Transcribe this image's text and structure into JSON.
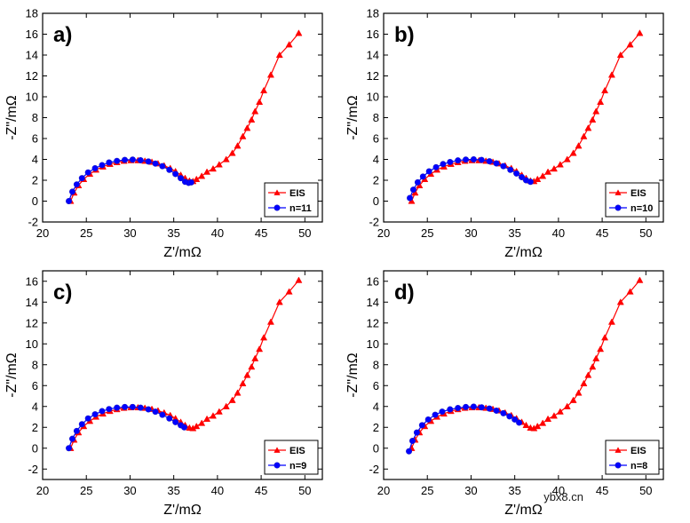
{
  "colors": {
    "eis": "#ff0000",
    "fit": "#0000ff",
    "frame": "#000000"
  },
  "watermark": "ybx8.cn",
  "chart_data": [
    {
      "type": "line",
      "panel_label": "a)",
      "xlabel": "Z'/mΩ",
      "ylabel": "-Z\"/mΩ",
      "xlim": [
        20,
        52
      ],
      "ylim": [
        -2,
        18
      ],
      "xticks": [
        20,
        25,
        30,
        35,
        40,
        45,
        50
      ],
      "yticks": [
        -2,
        0,
        2,
        4,
        6,
        8,
        10,
        12,
        14,
        16,
        18
      ],
      "legend_position": "bottom-right",
      "series": [
        {
          "name": "EIS",
          "marker": "triangle",
          "color": "#ff0000",
          "x": [
            23.2,
            23.6,
            24.1,
            24.7,
            25.4,
            26.1,
            26.9,
            27.7,
            28.5,
            29.3,
            30.1,
            30.9,
            31.7,
            32.5,
            33.2,
            33.9,
            34.6,
            35.2,
            35.8,
            36.3,
            36.8,
            37.2,
            37.6,
            38.2,
            38.8,
            39.5,
            40.2,
            41.0,
            41.7,
            42.3,
            42.9,
            43.4,
            43.9,
            44.3,
            44.8,
            45.3,
            46.1,
            47.1,
            48.2,
            49.3
          ],
          "y": [
            0.0,
            0.8,
            1.5,
            2.1,
            2.6,
            3.0,
            3.3,
            3.55,
            3.72,
            3.85,
            3.9,
            3.9,
            3.85,
            3.75,
            3.6,
            3.4,
            3.15,
            2.85,
            2.5,
            2.2,
            1.95,
            1.9,
            2.1,
            2.4,
            2.8,
            3.1,
            3.5,
            4.0,
            4.6,
            5.3,
            6.2,
            7.0,
            7.8,
            8.6,
            9.5,
            10.6,
            12.1,
            14.0,
            15.0,
            16.1
          ]
        },
        {
          "name": "n=11",
          "marker": "circle",
          "color": "#0000ff",
          "x": [
            23.0,
            23.4,
            23.9,
            24.5,
            25.2,
            26.0,
            26.8,
            27.6,
            28.5,
            29.4,
            30.3,
            31.2,
            32.1,
            32.9,
            33.7,
            34.5,
            35.2,
            35.8,
            36.3,
            36.7,
            37.0
          ],
          "y": [
            0.0,
            0.9,
            1.6,
            2.2,
            2.75,
            3.15,
            3.45,
            3.7,
            3.85,
            3.95,
            3.98,
            3.92,
            3.8,
            3.6,
            3.35,
            3.0,
            2.6,
            2.2,
            1.85,
            1.75,
            1.8
          ]
        }
      ]
    },
    {
      "type": "line",
      "panel_label": "b)",
      "xlabel": "Z'/mΩ",
      "ylabel": "-Z\"/mΩ",
      "xlim": [
        20,
        52
      ],
      "ylim": [
        -2,
        18
      ],
      "xticks": [
        20,
        25,
        30,
        35,
        40,
        45,
        50
      ],
      "yticks": [
        -2,
        0,
        2,
        4,
        6,
        8,
        10,
        12,
        14,
        16,
        18
      ],
      "legend_position": "bottom-right",
      "series": [
        {
          "name": "EIS",
          "marker": "triangle",
          "color": "#ff0000",
          "x": [
            23.2,
            23.6,
            24.1,
            24.7,
            25.4,
            26.1,
            26.9,
            27.7,
            28.5,
            29.3,
            30.1,
            30.9,
            31.7,
            32.5,
            33.2,
            33.9,
            34.6,
            35.2,
            35.8,
            36.3,
            36.8,
            37.2,
            37.6,
            38.2,
            38.8,
            39.5,
            40.2,
            41.0,
            41.7,
            42.3,
            42.9,
            43.4,
            43.9,
            44.3,
            44.8,
            45.3,
            46.1,
            47.1,
            48.2,
            49.3
          ],
          "y": [
            0.0,
            0.8,
            1.5,
            2.1,
            2.6,
            3.0,
            3.3,
            3.55,
            3.72,
            3.85,
            3.9,
            3.9,
            3.85,
            3.75,
            3.6,
            3.4,
            3.15,
            2.85,
            2.5,
            2.2,
            1.95,
            1.9,
            2.1,
            2.4,
            2.8,
            3.1,
            3.5,
            4.0,
            4.6,
            5.3,
            6.2,
            7.0,
            7.8,
            8.6,
            9.5,
            10.6,
            12.1,
            14.0,
            15.0,
            16.1
          ]
        },
        {
          "name": "n=10",
          "marker": "circle",
          "color": "#0000ff",
          "x": [
            23.0,
            23.4,
            23.9,
            24.5,
            25.2,
            26.0,
            26.8,
            27.6,
            28.5,
            29.4,
            30.3,
            31.2,
            32.1,
            32.9,
            33.7,
            34.5,
            35.2,
            35.8,
            36.3,
            36.8
          ],
          "y": [
            0.3,
            1.1,
            1.8,
            2.35,
            2.85,
            3.25,
            3.55,
            3.75,
            3.9,
            3.98,
            4.0,
            3.95,
            3.82,
            3.62,
            3.35,
            3.0,
            2.65,
            2.3,
            2.0,
            1.85
          ]
        }
      ]
    },
    {
      "type": "line",
      "panel_label": "c)",
      "xlabel": "Z'/mΩ",
      "ylabel": "-Z\"/mΩ",
      "xlim": [
        20,
        52
      ],
      "ylim": [
        -3,
        17
      ],
      "xticks": [
        20,
        25,
        30,
        35,
        40,
        45,
        50
      ],
      "yticks": [
        -2,
        0,
        2,
        4,
        6,
        8,
        10,
        12,
        14,
        16
      ],
      "legend_position": "bottom-right",
      "series": [
        {
          "name": "EIS",
          "marker": "triangle",
          "color": "#ff0000",
          "x": [
            23.2,
            23.6,
            24.1,
            24.7,
            25.4,
            26.1,
            26.9,
            27.7,
            28.5,
            29.3,
            30.1,
            30.9,
            31.7,
            32.5,
            33.2,
            33.9,
            34.6,
            35.2,
            35.8,
            36.3,
            36.8,
            37.2,
            37.6,
            38.2,
            38.8,
            39.5,
            40.2,
            41.0,
            41.7,
            42.3,
            42.9,
            43.4,
            43.9,
            44.3,
            44.8,
            45.3,
            46.1,
            47.1,
            48.2,
            49.3
          ],
          "y": [
            0.0,
            0.8,
            1.5,
            2.1,
            2.6,
            3.0,
            3.3,
            3.55,
            3.72,
            3.85,
            3.9,
            3.9,
            3.85,
            3.75,
            3.6,
            3.4,
            3.15,
            2.85,
            2.5,
            2.2,
            1.95,
            1.9,
            2.1,
            2.4,
            2.8,
            3.1,
            3.5,
            4.0,
            4.6,
            5.3,
            6.2,
            7.0,
            7.8,
            8.6,
            9.5,
            10.6,
            12.1,
            14.0,
            15.0,
            16.1
          ]
        },
        {
          "name": "n=9",
          "marker": "circle",
          "color": "#0000ff",
          "x": [
            23.0,
            23.4,
            23.9,
            24.5,
            25.2,
            26.0,
            26.8,
            27.6,
            28.5,
            29.4,
            30.3,
            31.2,
            32.1,
            32.9,
            33.7,
            34.5,
            35.2,
            35.8,
            36.2
          ],
          "y": [
            0.0,
            0.9,
            1.65,
            2.3,
            2.85,
            3.25,
            3.55,
            3.75,
            3.88,
            3.95,
            3.95,
            3.88,
            3.72,
            3.5,
            3.2,
            2.85,
            2.5,
            2.2,
            2.0
          ]
        }
      ]
    },
    {
      "type": "line",
      "panel_label": "d)",
      "xlabel": "Z'/mΩ",
      "ylabel": "-Z\"/mΩ",
      "xlim": [
        20,
        52
      ],
      "ylim": [
        -3,
        17
      ],
      "xticks": [
        20,
        25,
        30,
        35,
        40,
        45,
        50
      ],
      "yticks": [
        -2,
        0,
        2,
        4,
        6,
        8,
        10,
        12,
        14,
        16
      ],
      "legend_position": "bottom-right",
      "series": [
        {
          "name": "EIS",
          "marker": "triangle",
          "color": "#ff0000",
          "x": [
            23.2,
            23.6,
            24.1,
            24.7,
            25.4,
            26.1,
            26.9,
            27.7,
            28.5,
            29.3,
            30.1,
            30.9,
            31.7,
            32.5,
            33.2,
            33.9,
            34.6,
            35.2,
            35.8,
            36.3,
            36.8,
            37.2,
            37.6,
            38.2,
            38.8,
            39.5,
            40.2,
            41.0,
            41.7,
            42.3,
            42.9,
            43.4,
            43.9,
            44.3,
            44.8,
            45.3,
            46.1,
            47.1,
            48.2,
            49.3
          ],
          "y": [
            0.0,
            0.8,
            1.5,
            2.1,
            2.6,
            3.0,
            3.3,
            3.55,
            3.72,
            3.85,
            3.9,
            3.9,
            3.85,
            3.75,
            3.6,
            3.4,
            3.15,
            2.85,
            2.5,
            2.2,
            1.95,
            1.9,
            2.1,
            2.4,
            2.8,
            3.1,
            3.5,
            4.0,
            4.6,
            5.3,
            6.2,
            7.0,
            7.8,
            8.6,
            9.5,
            10.6,
            12.1,
            14.0,
            15.0,
            16.1
          ]
        },
        {
          "name": "n=8",
          "marker": "circle",
          "color": "#0000ff",
          "x": [
            22.9,
            23.3,
            23.8,
            24.4,
            25.1,
            25.9,
            26.7,
            27.6,
            28.5,
            29.4,
            30.3,
            31.2,
            32.1,
            32.9,
            33.7,
            34.4,
            35.0,
            35.5
          ],
          "y": [
            -0.3,
            0.7,
            1.5,
            2.2,
            2.75,
            3.2,
            3.5,
            3.72,
            3.85,
            3.95,
            3.98,
            3.92,
            3.8,
            3.6,
            3.35,
            3.05,
            2.75,
            2.45
          ]
        }
      ]
    }
  ]
}
